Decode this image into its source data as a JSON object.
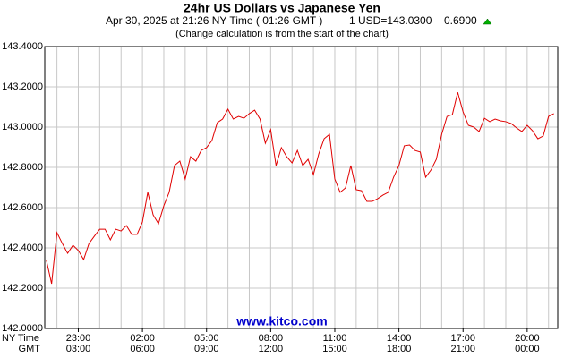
{
  "chart_data": {
    "type": "line",
    "title": "24hr US Dollars vs Japanese Yen",
    "date_line": "Apr 30, 2025 at 21:26 NY Time ( 01:26 GMT )",
    "quote": "1 USD=143.0300",
    "change": "0.6900",
    "note": "(Change calculation is from the start of the chart)",
    "watermark": "www.kitco.com",
    "x_axis_label": "NY Time",
    "x2_axis_label": "GMT",
    "x": [
      -2.5,
      -2.25,
      -2,
      -1.75,
      -1.5,
      -1.25,
      -1,
      -0.75,
      -0.5,
      -0.25,
      0,
      0.25,
      0.5,
      0.75,
      1,
      1.25,
      1.5,
      1.75,
      2,
      2.25,
      2.5,
      2.75,
      3,
      3.25,
      3.5,
      3.75,
      4,
      4.25,
      4.5,
      4.75,
      5,
      5.25,
      5.5,
      5.75,
      6,
      6.25,
      6.5,
      6.75,
      7,
      7.25,
      7.5,
      7.75,
      8,
      8.25,
      8.5,
      8.75,
      9,
      9.25,
      9.5,
      9.75,
      10,
      10.25,
      10.5,
      10.75,
      11,
      11.25,
      11.5,
      11.75,
      12,
      12.25,
      12.5,
      12.75,
      13,
      13.25,
      13.5,
      13.75,
      14,
      14.25,
      14.5,
      14.75,
      15,
      15.25,
      15.5,
      15.75,
      16,
      16.25,
      16.5,
      16.75,
      17,
      17.25,
      17.5,
      17.75,
      18,
      18.25,
      18.5,
      18.75,
      19,
      19.25,
      19.5,
      19.75,
      20,
      20.25,
      20.5,
      20.75,
      21,
      21.25
    ],
    "series": [
      {
        "name": "USD/JPY",
        "color": "#e00000",
        "values": [
          142.342,
          142.222,
          142.476,
          142.422,
          142.373,
          142.413,
          142.387,
          142.342,
          142.422,
          142.458,
          142.493,
          142.493,
          142.44,
          142.493,
          142.484,
          142.511,
          142.467,
          142.467,
          142.529,
          142.676,
          142.564,
          142.52,
          142.609,
          142.676,
          142.809,
          142.831,
          142.742,
          142.853,
          142.831,
          142.884,
          142.898,
          142.933,
          143.022,
          143.04,
          143.089,
          143.04,
          143.053,
          143.044,
          143.067,
          143.084,
          143.04,
          142.92,
          142.987,
          142.809,
          142.898,
          142.853,
          142.822,
          142.884,
          142.809,
          142.84,
          142.764,
          142.867,
          142.942,
          142.964,
          142.742,
          142.676,
          142.698,
          142.809,
          142.689,
          142.684,
          142.631,
          142.631,
          142.644,
          142.662,
          142.676,
          142.751,
          142.809,
          142.907,
          142.911,
          142.884,
          142.876,
          142.751,
          142.787,
          142.84,
          142.964,
          143.053,
          143.062,
          143.173,
          143.076,
          143.009,
          143.0,
          142.978,
          143.044,
          143.027,
          143.04,
          143.031,
          143.027,
          143.018,
          142.996,
          142.978,
          143.009,
          142.982,
          142.942,
          142.956,
          143.053,
          143.067
        ]
      }
    ],
    "xlim": [
      -2.57,
      21.43
    ],
    "ylim": [
      142.0,
      143.4
    ],
    "xticks": [
      {
        "value": -1,
        "label": "23:00"
      },
      {
        "value": 2,
        "label": "02:00"
      },
      {
        "value": 5,
        "label": "05:00"
      },
      {
        "value": 8,
        "label": "08:00"
      },
      {
        "value": 11,
        "label": "11:00"
      },
      {
        "value": 14,
        "label": "14:00"
      },
      {
        "value": 17,
        "label": "17:00"
      },
      {
        "value": 20,
        "label": "20:00"
      }
    ],
    "x2ticklabels": [
      "03:00",
      "06:00",
      "09:00",
      "12:00",
      "15:00",
      "18:00",
      "21:00",
      "00:00"
    ],
    "xgrid": [
      -2,
      -1,
      0,
      1,
      2,
      3,
      4,
      5,
      6,
      7,
      8,
      9,
      10,
      11,
      12,
      13,
      14,
      15,
      16,
      17,
      18,
      19,
      20,
      21
    ],
    "yticks": [
      {
        "value": 142.0,
        "label": "142.0000"
      },
      {
        "value": 142.2,
        "label": "142.2000"
      },
      {
        "value": 142.4,
        "label": "142.4000"
      },
      {
        "value": 142.6,
        "label": "142.6000"
      },
      {
        "value": 142.8,
        "label": "142.8000"
      },
      {
        "value": 143.0,
        "label": "143.0000"
      },
      {
        "value": 143.2,
        "label": "143.2000"
      },
      {
        "value": 143.4,
        "label": "143.4000"
      }
    ],
    "grid": true
  }
}
